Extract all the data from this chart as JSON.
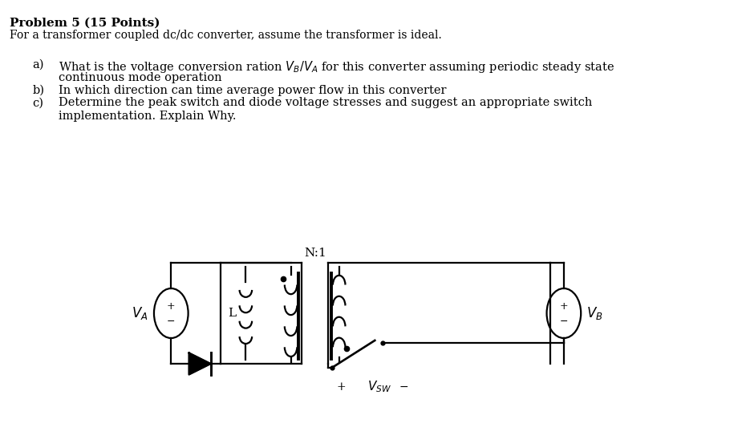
{
  "bg_color": "#ffffff",
  "text_color": "#000000",
  "title": "Problem 5 (15 Points)",
  "subtitle": "For a transformer coupled dc/dc converter, assume the transformer is ideal.",
  "item_a_1": "a)   What is the voltage conversion ration $V_B/V_A$ for this converter assuming periodic steady state",
  "item_a_2": "      continuous mode operation",
  "item_b": "b)   In which direction can time average power flow in this converter",
  "item_c_1": "c)   Determine the peak switch and diode voltage stresses and suggest an appropriate switch",
  "item_c_2": "      implementation. Explain Why.",
  "label_N1": "N:1",
  "label_VA": "$V_A$",
  "label_VB": "$V_B$",
  "label_L": "L",
  "label_plus": "+",
  "label_minus": "−",
  "label_vsw": "$V_{SW}$"
}
